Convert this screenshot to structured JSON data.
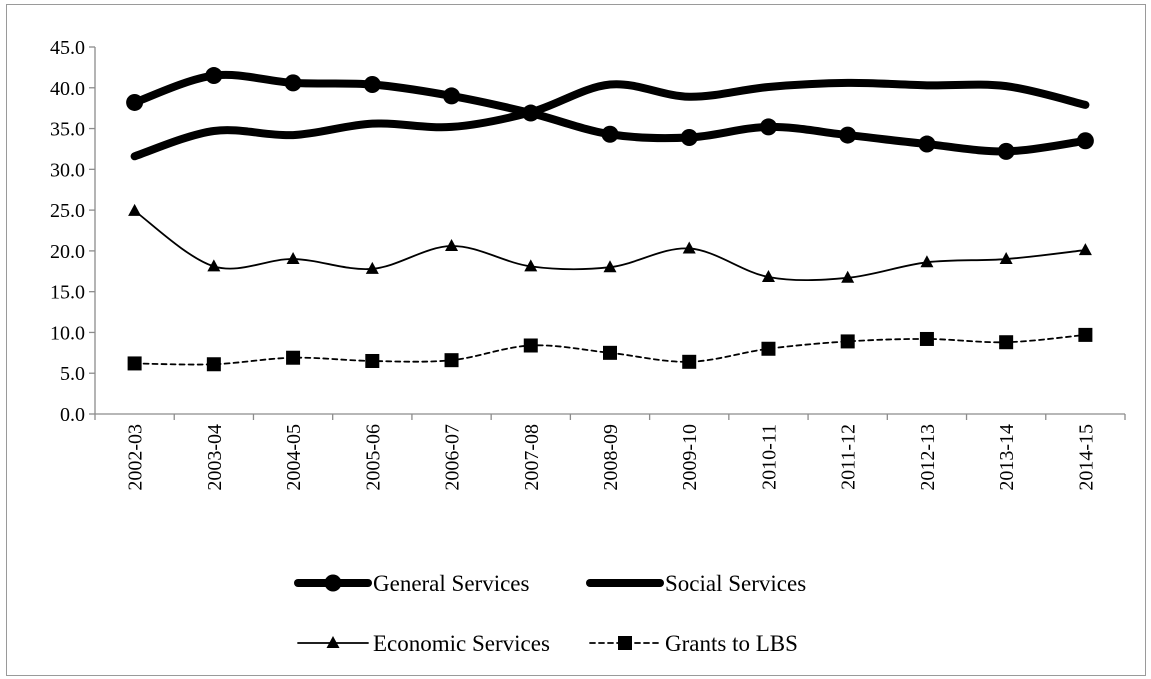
{
  "chart_data": {
    "type": "line",
    "title": "",
    "xlabel": "",
    "ylabel": "",
    "ylim": [
      0,
      45
    ],
    "yticks": [
      "0.0",
      "5.0",
      "10.0",
      "15.0",
      "20.0",
      "25.0",
      "30.0",
      "35.0",
      "40.0",
      "45.0"
    ],
    "categories": [
      "2002-03",
      "2003-04",
      "2004-05",
      "2005-06",
      "2006-07",
      "2007-08",
      "2008-09",
      "2009-10",
      "2010-11",
      "2011-12",
      "2012-13",
      "2013-14",
      "2014-15"
    ],
    "grid": false,
    "legend_position": "bottom",
    "series": [
      {
        "name": "General Services",
        "values": [
          38.2,
          41.5,
          40.6,
          40.4,
          39.0,
          36.9,
          34.3,
          33.9,
          35.2,
          34.2,
          33.1,
          32.2,
          33.5
        ],
        "marker": "circle",
        "line_style": "thick",
        "color": "#000000"
      },
      {
        "name": "Social Services",
        "values": [
          31.6,
          34.7,
          34.2,
          35.6,
          35.2,
          37.0,
          40.4,
          38.9,
          40.1,
          40.6,
          40.3,
          40.2,
          37.9
        ],
        "marker": "none",
        "line_style": "thick",
        "color": "#000000"
      },
      {
        "name": "Economic Services",
        "values": [
          24.9,
          18.1,
          19.0,
          17.8,
          20.6,
          18.1,
          18.0,
          20.3,
          16.8,
          16.7,
          18.6,
          19.0,
          20.1
        ],
        "marker": "triangle",
        "line_style": "thin",
        "color": "#000000"
      },
      {
        "name": "Grants to LBS",
        "values": [
          6.2,
          6.1,
          6.9,
          6.5,
          6.6,
          8.4,
          7.5,
          6.4,
          8.0,
          8.9,
          9.2,
          8.8,
          9.7
        ],
        "marker": "square",
        "line_style": "dashed",
        "color": "#000000"
      }
    ]
  }
}
